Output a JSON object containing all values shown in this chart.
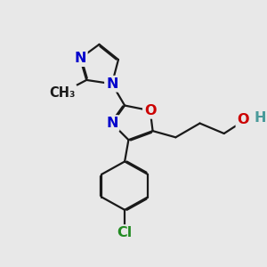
{
  "bg_color": "#e8e8e8",
  "bond_color": "#1a1a1a",
  "bond_width": 1.6,
  "dbo": 0.04,
  "atom_colors": {
    "N": "#0000cc",
    "O": "#cc0000",
    "Cl": "#228b22",
    "H": "#4a9a9a",
    "C": "#1a1a1a"
  },
  "fs": 11.5
}
